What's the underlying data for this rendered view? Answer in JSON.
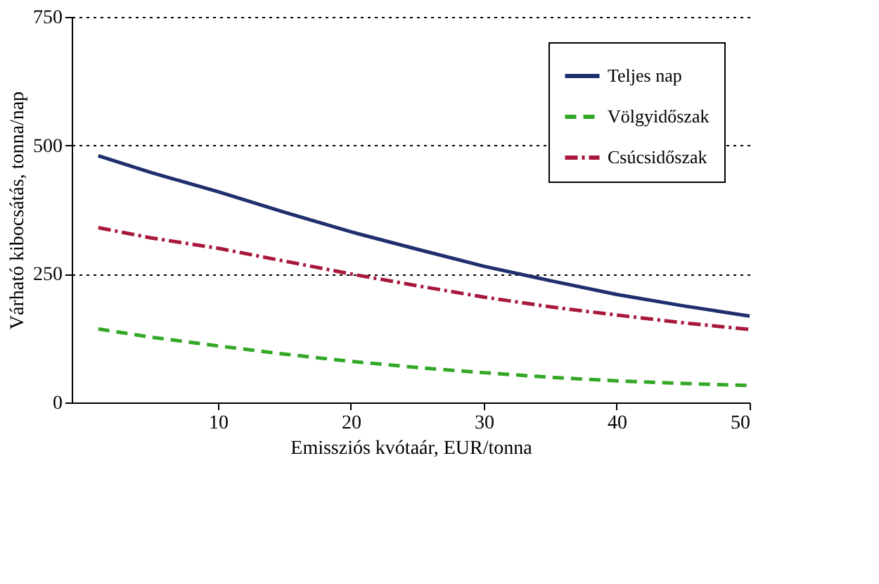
{
  "chart_data": {
    "type": "line",
    "xlabel": "Emissziós kvótaár, EUR/tonna",
    "ylabel": "Várható kibocsátás, tonna/nap",
    "x": [
      1,
      5,
      10,
      15,
      20,
      25,
      30,
      35,
      40,
      45,
      50
    ],
    "series": [
      {
        "name": "Teljes nap",
        "color": "#1f2f6e",
        "line_style": "solid",
        "values": [
          480,
          447,
          410,
          370,
          332,
          298,
          265,
          237,
          210,
          188,
          168
        ]
      },
      {
        "name": "Völgyidőszak",
        "color": "#33a826",
        "line_style": "dashed",
        "values": [
          143,
          127,
          110,
          94,
          80,
          68,
          58,
          49,
          42,
          37,
          33
        ]
      },
      {
        "name": "Csúcsidőszak",
        "color": "#a8183c",
        "line_style": "dashdot",
        "values": [
          340,
          320,
          300,
          275,
          250,
          227,
          205,
          186,
          170,
          155,
          142
        ]
      }
    ],
    "xlim": [
      -1,
      50
    ],
    "ylim": [
      0,
      750
    ],
    "xticks": [
      10,
      20,
      30,
      40,
      50
    ],
    "yticks": [
      0,
      250,
      500,
      750
    ],
    "grid": "y",
    "legend": "top right",
    "marker": "none"
  }
}
